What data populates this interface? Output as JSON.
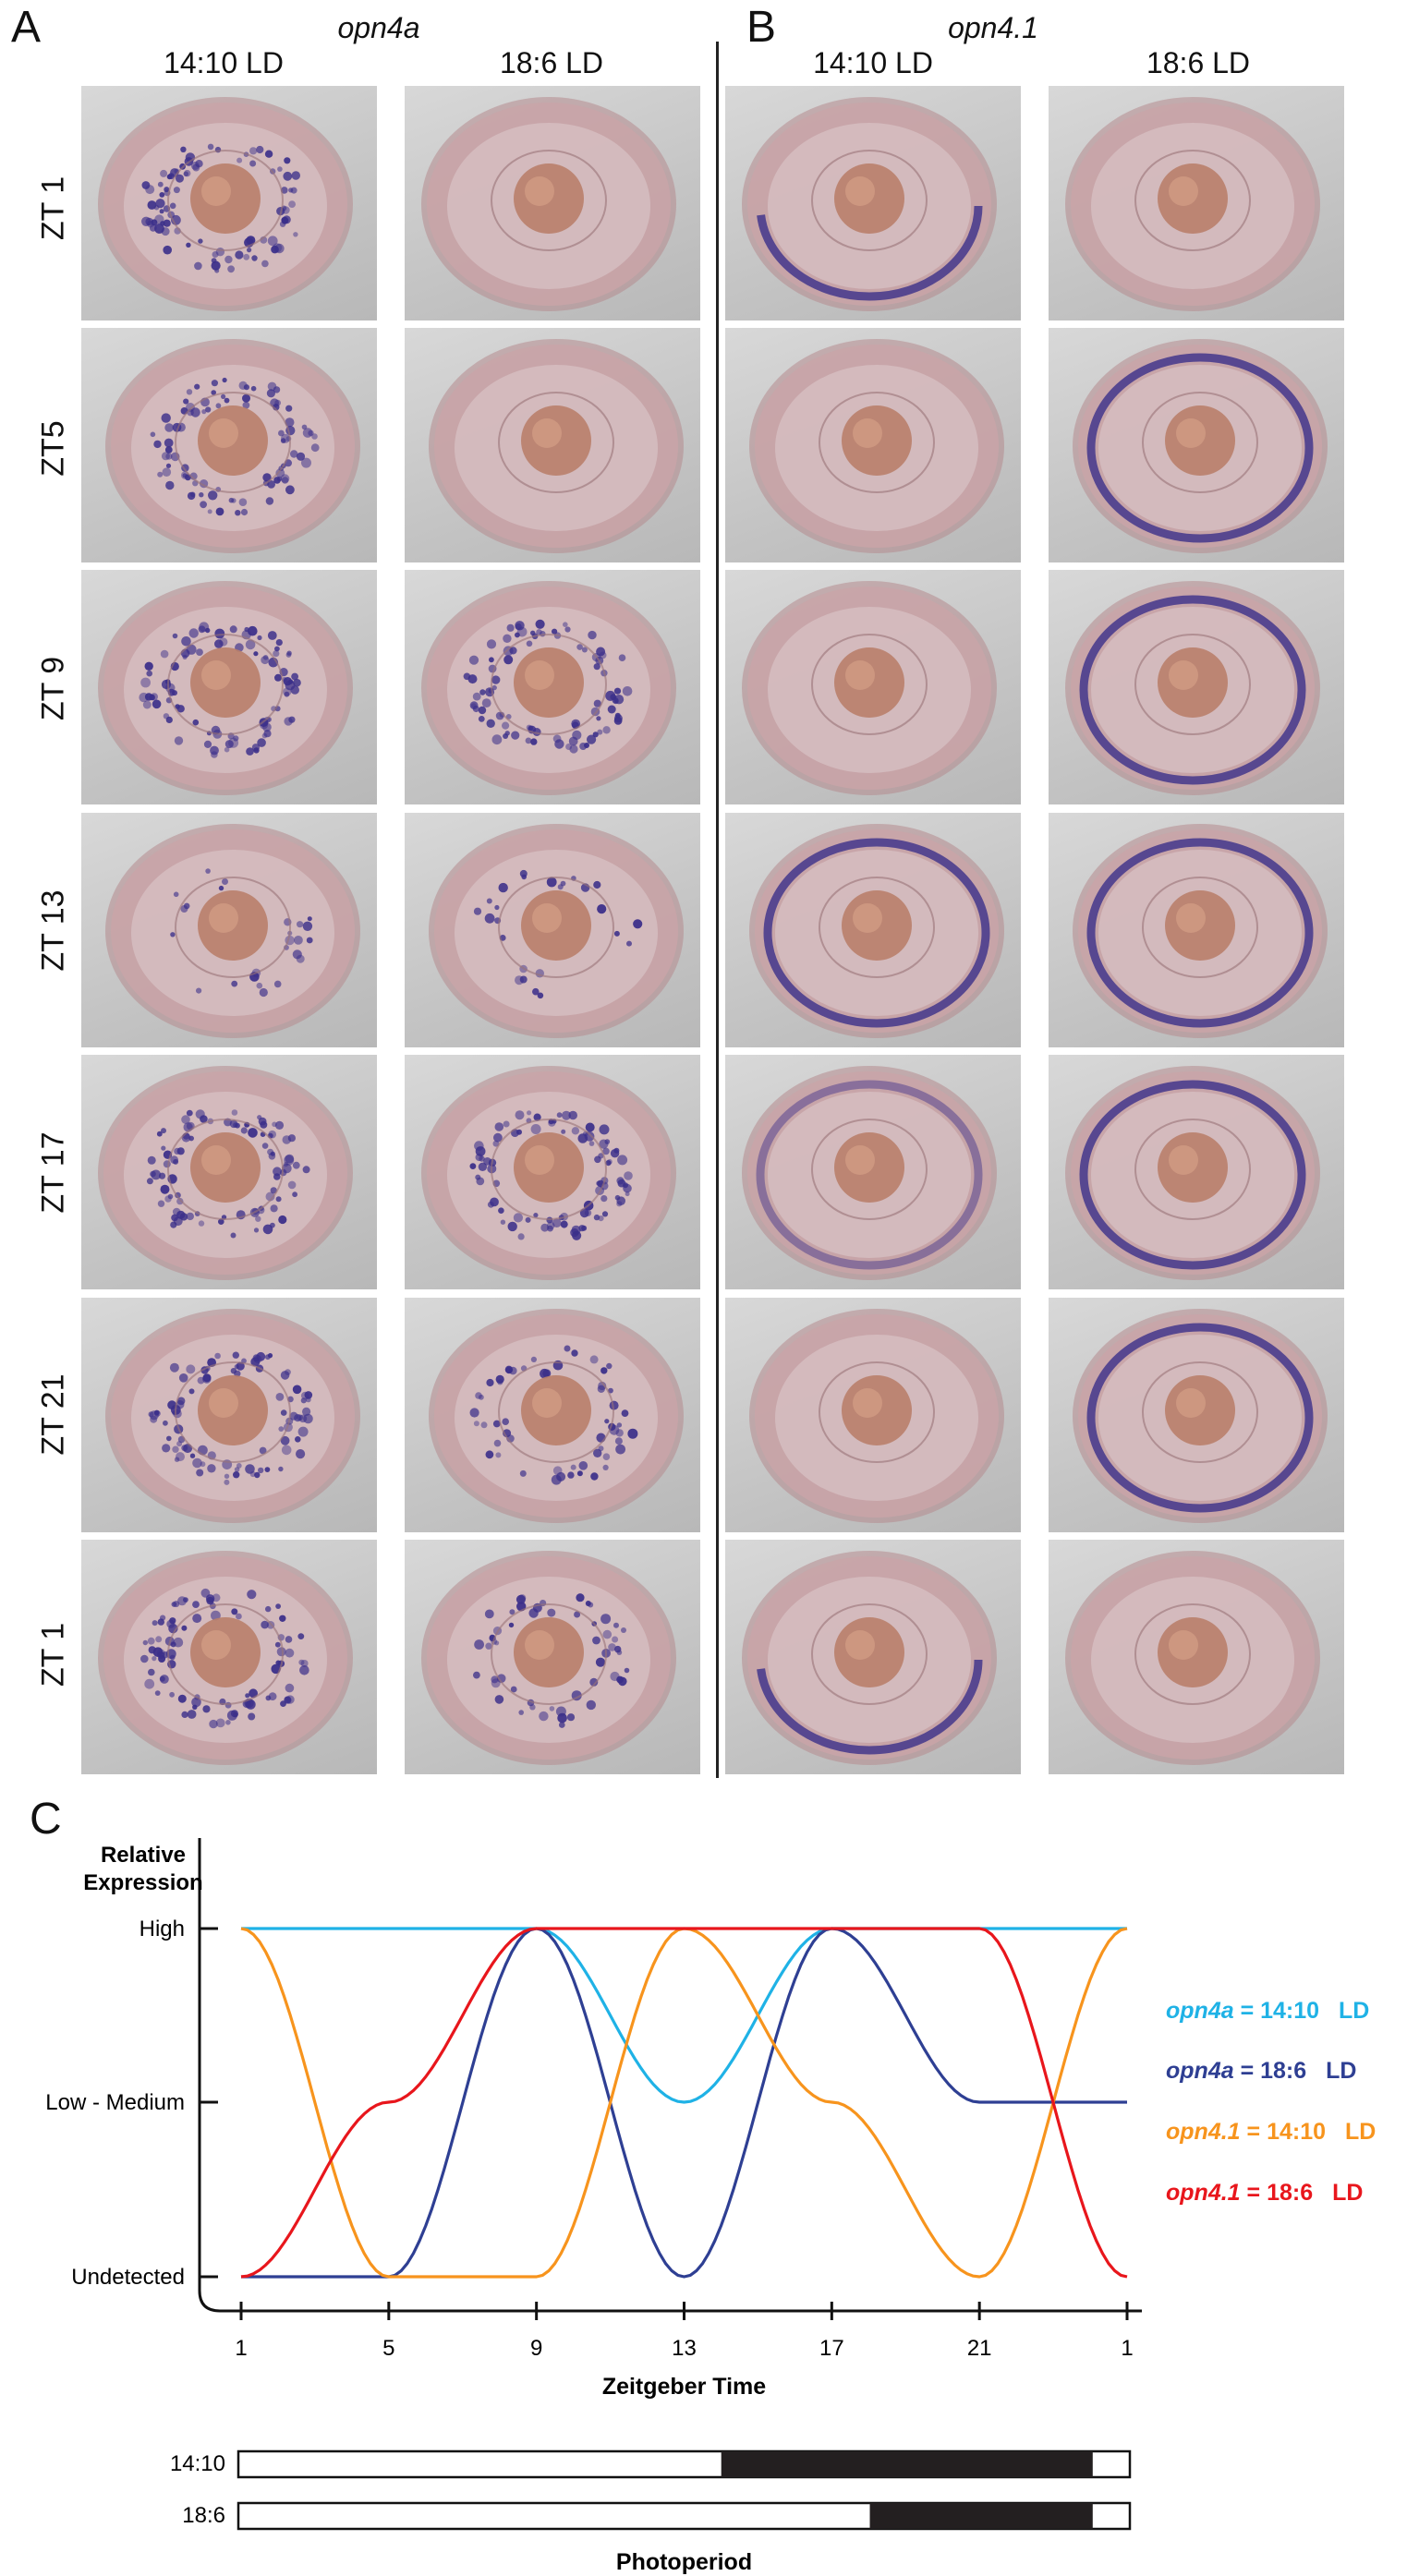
{
  "panels": {
    "A": {
      "letter": "A",
      "gene": "opn4a"
    },
    "B": {
      "letter": "B",
      "gene": "opn4.1"
    },
    "C": {
      "letter": "C"
    }
  },
  "column_headers": [
    "14:10 LD",
    "18:6 LD",
    "14:10 LD",
    "18:6 LD"
  ],
  "row_labels": [
    "ZT 1",
    "ZT5",
    "ZT 9",
    "ZT 13",
    "ZT 17",
    "ZT 21",
    "ZT 1"
  ],
  "staining": {
    "opn4a_14_10": [
      "dots-strong",
      "dots-strong",
      "dots-strong",
      "dots-faint",
      "dots-strong",
      "dots-strong",
      "dots-strong"
    ],
    "opn4a_18_6": [
      "none",
      "none",
      "dots-strong",
      "dots-faint",
      "dots-strong",
      "dots-medium",
      "dots-medium"
    ],
    "opn41_14_10": [
      "band-partial",
      "none",
      "none",
      "band",
      "band-faint",
      "none",
      "band-partial"
    ],
    "opn41_18_6": [
      "none",
      "band",
      "band",
      "band",
      "band",
      "band",
      "none"
    ]
  },
  "chart_data": {
    "type": "line",
    "ylabel": "Relative\nExpression",
    "y_levels": [
      "Undetected",
      "Low - Medium",
      "High"
    ],
    "y_values": [
      0,
      1,
      2
    ],
    "xlabel": "Zeitgeber Time",
    "x_ticks": [
      "1",
      "5",
      "9",
      "13",
      "17",
      "21",
      "1"
    ],
    "x": [
      1,
      5,
      9,
      13,
      17,
      21,
      25
    ],
    "grid": false,
    "legend_position": "right",
    "series": [
      {
        "gene": "opn4a",
        "name": "14:10",
        "suffix": "LD",
        "color": "#1fb2e6",
        "values": [
          2,
          2,
          2,
          1,
          2,
          2,
          2
        ]
      },
      {
        "gene": "opn4a",
        "name": "18:6",
        "suffix": "LD",
        "color": "#2e3f93",
        "values": [
          0,
          0,
          2,
          0,
          2,
          1,
          1
        ]
      },
      {
        "gene": "opn4.1",
        "name": "14:10",
        "suffix": "LD",
        "color": "#f7941d",
        "values": [
          2,
          0,
          0,
          2,
          1,
          0,
          2
        ]
      },
      {
        "gene": "opn4.1",
        "name": "18:6",
        "suffix": "LD",
        "color": "#e8161c",
        "values": [
          0,
          1,
          2,
          2,
          2,
          2,
          0
        ]
      }
    ]
  },
  "photoperiod": {
    "title": "Photoperiod",
    "bars": [
      {
        "label": "14:10",
        "dark_from_zt": 14,
        "dark_to_zt": 24
      },
      {
        "label": "18:6",
        "dark_from_zt": 18,
        "dark_to_zt": 24
      }
    ]
  },
  "colors": {
    "stain": "#3b2f8a",
    "tissue": "#c9a4a8",
    "lens": "#b97f6a"
  }
}
